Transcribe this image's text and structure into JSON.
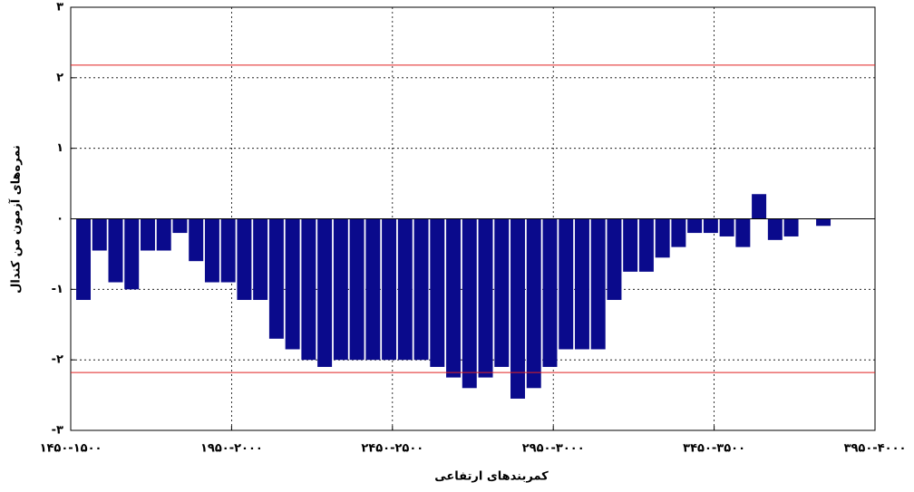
{
  "chart_data": {
    "type": "bar",
    "ylabel": "نمره‌های آزمون من کندال",
    "xlabel": "کمربندهای ارتفاعی",
    "categories": [
      "۱۴۵۰-۱۵۰۰",
      null,
      null,
      null,
      null,
      null,
      null,
      null,
      null,
      null,
      "۱۹۵۰-۲۰۰۰",
      null,
      null,
      null,
      null,
      null,
      null,
      null,
      null,
      null,
      "۲۴۵۰-۲۵۰۰",
      null,
      null,
      null,
      null,
      null,
      null,
      null,
      null,
      null,
      "۲۹۵۰-۳۰۰۰",
      null,
      null,
      null,
      null,
      null,
      null,
      null,
      null,
      null,
      "۳۴۵۰-۳۵۰۰",
      null,
      null,
      null,
      null,
      null,
      null,
      null,
      null,
      null,
      "۳۹۵۰-۴۰۰۰"
    ],
    "values": [
      -1.15,
      -0.45,
      -0.9,
      -1.0,
      -0.45,
      -0.45,
      -0.2,
      -0.6,
      -0.9,
      -0.9,
      -1.15,
      -1.15,
      -1.7,
      -1.85,
      -2.0,
      -2.1,
      -2.0,
      -2.0,
      -2.0,
      -2.0,
      -2.0,
      -2.0,
      -2.1,
      -2.25,
      -2.4,
      -2.25,
      -2.1,
      -2.55,
      -2.4,
      -2.1,
      -1.85,
      -1.85,
      -1.85,
      -1.15,
      -0.75,
      -0.75,
      -0.55,
      -0.4,
      -0.2,
      -0.2,
      -0.25,
      -0.4,
      0.35,
      -0.3,
      -0.25,
      null,
      -0.1,
      null,
      null,
      null,
      null
    ],
    "color": "#0a0a8c",
    "reference_lines": [
      2.18,
      -2.18
    ],
    "reference_color": "#e02020",
    "ylim": [
      -3,
      3
    ],
    "yticks": [
      {
        "value": -3,
        "label": "-۳"
      },
      {
        "value": -2,
        "label": "-۲"
      },
      {
        "value": -1,
        "label": "-۱"
      },
      {
        "value": 0,
        "label": "۰"
      },
      {
        "value": 1,
        "label": "۱"
      },
      {
        "value": 2,
        "label": "۲"
      },
      {
        "value": 3,
        "label": "۳"
      }
    ],
    "grid": true
  }
}
